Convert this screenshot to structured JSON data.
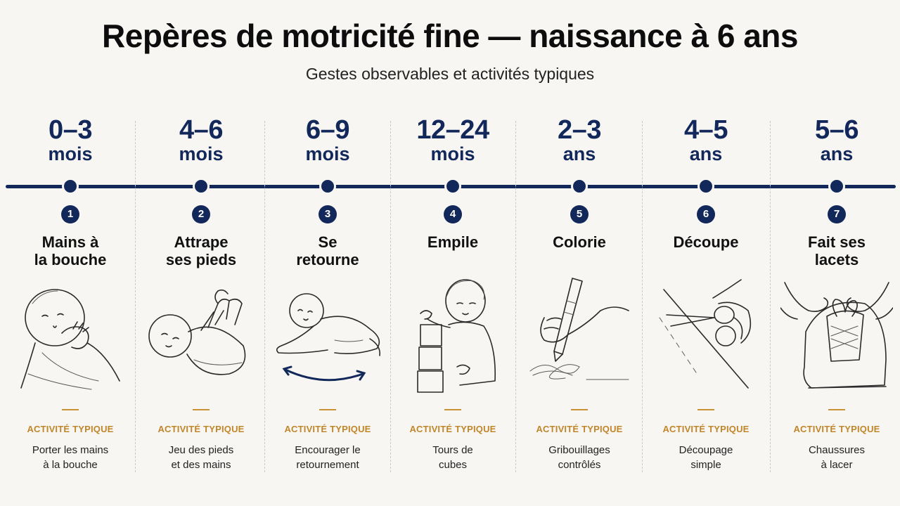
{
  "title": "Repères de motricité fine — naissance à 6 ans",
  "subtitle": "Gestes observables et activités typiques",
  "activity_label": "ACTIVITÉ TYPIQUE",
  "stages": [
    {
      "age": "0–3",
      "unit": "mois",
      "num": "1",
      "label": "Mains à\nla bouche",
      "activity": "Porter les mains\nà la bouche",
      "icon": "baby-hand-mouth-icon"
    },
    {
      "age": "4–6",
      "unit": "mois",
      "num": "2",
      "label": "Attrape\nses pieds",
      "activity": "Jeu des pieds\net des mains",
      "icon": "baby-grabbing-feet-icon"
    },
    {
      "age": "6–9",
      "unit": "mois",
      "num": "3",
      "label": "Se\nretourne",
      "activity": "Encourager le\nretournement",
      "icon": "baby-rolling-over-icon"
    },
    {
      "age": "12–24",
      "unit": "mois",
      "num": "4",
      "label": "Empile",
      "activity": "Tours de\ncubes",
      "icon": "toddler-stacking-blocks-icon"
    },
    {
      "age": "2–3",
      "unit": "ans",
      "num": "5",
      "label": "Colorie",
      "activity": "Gribouillages\ncontrôlés",
      "icon": "hand-crayon-icon"
    },
    {
      "age": "4–5",
      "unit": "ans",
      "num": "6",
      "label": "Découpe",
      "activity": "Découpage\nsimple",
      "icon": "hand-scissors-icon"
    },
    {
      "age": "5–6",
      "unit": "ans",
      "num": "7",
      "label": "Fait ses\nlacets",
      "activity": "Chaussures\nà lacer",
      "icon": "hands-tying-laces-icon"
    }
  ],
  "colors": {
    "navy": "#13285a",
    "gold": "#c0862a",
    "background": "#f7f6f3"
  }
}
